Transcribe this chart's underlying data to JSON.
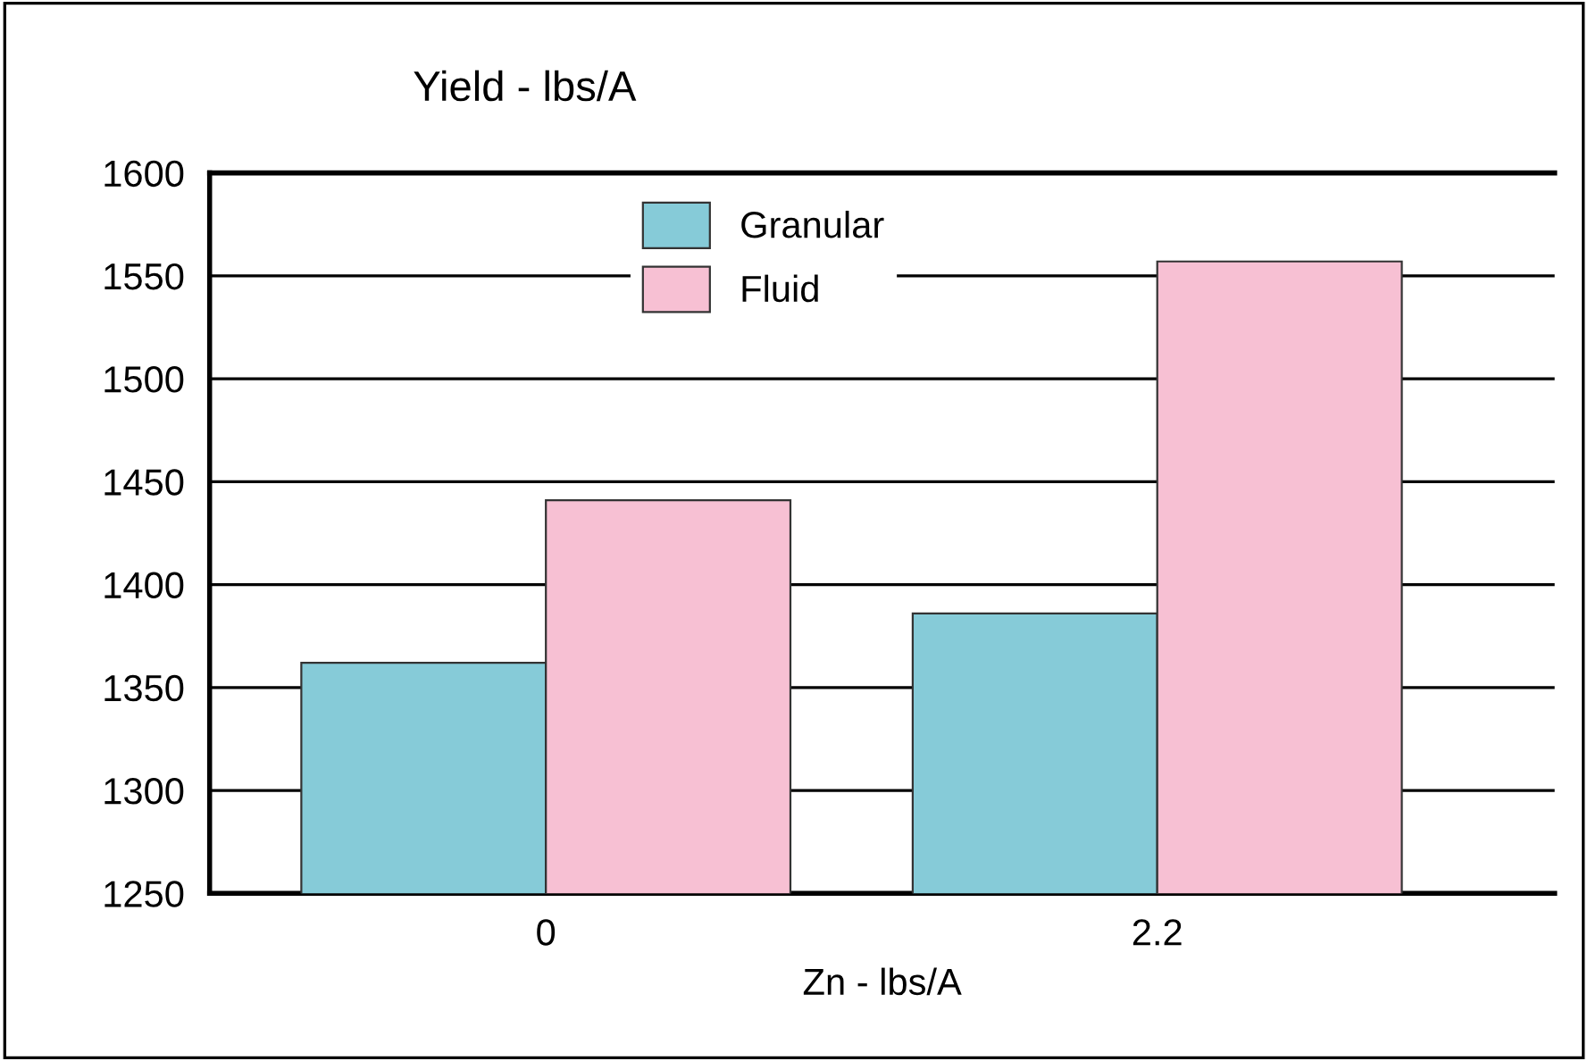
{
  "chart_data": {
    "type": "bar",
    "title": "Yield - lbs/A",
    "xlabel": "Zn - lbs/A",
    "categories": [
      "0",
      "2.2"
    ],
    "series": [
      {
        "name": "Granular",
        "color": "#86cbd8",
        "values": [
          1362,
          1386
        ]
      },
      {
        "name": "Fluid",
        "color": "#f7c0d3",
        "values": [
          1441,
          1557
        ]
      }
    ],
    "ylim": [
      1250,
      1600
    ],
    "yticks": [
      1250,
      1300,
      1350,
      1400,
      1450,
      1500,
      1550,
      1600
    ],
    "grid": "y",
    "legend": "top left"
  }
}
